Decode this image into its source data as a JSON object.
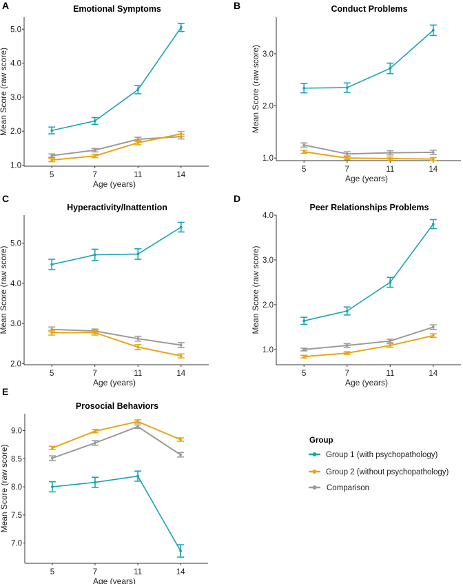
{
  "legend": {
    "title": "Group",
    "position": "bottom-right",
    "items": [
      {
        "label": "Group 1 (with psychopathology)",
        "color": "#1BA3B2"
      },
      {
        "label": "Group 2 (without psychopathology)",
        "color": "#E5A712"
      },
      {
        "label": "Comparison",
        "color": "#9A9A9A"
      }
    ]
  },
  "chart_data": [
    {
      "type": "line",
      "panel": "A",
      "title": "Emotional Symptoms",
      "xlabel": "Age (years)",
      "ylabel": "Mean Score (raw score)",
      "categories": [
        "5",
        "7",
        "11",
        "14"
      ],
      "yticks": [
        "1.0",
        "2.0",
        "3.0",
        "4.0",
        "5.0"
      ],
      "ylim": [
        0.97,
        5.35
      ],
      "series": [
        {
          "name": "Group 1 (with psychopathology)",
          "values": [
            2.02,
            2.3,
            3.22,
            5.05
          ],
          "err": [
            0.1,
            0.1,
            0.12,
            0.12
          ]
        },
        {
          "name": "Group 2 (without psychopathology)",
          "values": [
            1.15,
            1.27,
            1.66,
            1.92
          ],
          "err": [
            0.05,
            0.05,
            0.06,
            0.07
          ]
        },
        {
          "name": "Comparison",
          "values": [
            1.28,
            1.44,
            1.76,
            1.84
          ],
          "err": [
            0.05,
            0.05,
            0.06,
            0.07
          ]
        }
      ]
    },
    {
      "type": "line",
      "panel": "B",
      "title": "Conduct Problems",
      "xlabel": "Age (years)",
      "ylabel": "Mean Score (raw score)",
      "categories": [
        "5",
        "7",
        "11",
        "14"
      ],
      "yticks": [
        "1.0",
        "2.0",
        "3.0"
      ],
      "ylim": [
        0.95,
        3.7
      ],
      "series": [
        {
          "name": "Group 1 (with psychopathology)",
          "values": [
            2.34,
            2.35,
            2.72,
            3.45
          ],
          "err": [
            0.09,
            0.09,
            0.1,
            0.1
          ]
        },
        {
          "name": "Group 2 (without psychopathology)",
          "values": [
            1.12,
            1.0,
            0.99,
            0.98
          ],
          "err": [
            0.03,
            0.03,
            0.03,
            0.03
          ]
        },
        {
          "name": "Comparison",
          "values": [
            1.25,
            1.08,
            1.1,
            1.11
          ],
          "err": [
            0.04,
            0.04,
            0.04,
            0.04
          ]
        }
      ]
    },
    {
      "type": "line",
      "panel": "C",
      "title": "Hyperactivity/Inattention",
      "xlabel": "Age (years)",
      "ylabel": "Mean Score (raw score)",
      "categories": [
        "5",
        "7",
        "11",
        "14"
      ],
      "yticks": [
        "2.0",
        "3.0",
        "4.0",
        "5.0"
      ],
      "ylim": [
        1.97,
        5.7
      ],
      "series": [
        {
          "name": "Group 1 (with psychopathology)",
          "values": [
            4.47,
            4.71,
            4.73,
            5.4
          ],
          "err": [
            0.13,
            0.14,
            0.13,
            0.12
          ]
        },
        {
          "name": "Group 2 (without psychopathology)",
          "values": [
            2.77,
            2.77,
            2.41,
            2.19
          ],
          "err": [
            0.06,
            0.06,
            0.06,
            0.05
          ]
        },
        {
          "name": "Comparison",
          "values": [
            2.85,
            2.81,
            2.62,
            2.46
          ],
          "err": [
            0.06,
            0.05,
            0.06,
            0.06
          ]
        }
      ]
    },
    {
      "type": "line",
      "panel": "D",
      "title": "Peer Relationships Problems",
      "xlabel": "Age (years)",
      "ylabel": "Mean Score (raw score)",
      "categories": [
        "5",
        "7",
        "11",
        "14"
      ],
      "yticks": [
        "1.0",
        "2.0",
        "3.0",
        "4.0"
      ],
      "ylim": [
        0.66,
        4.0
      ],
      "series": [
        {
          "name": "Group 1 (with psychopathology)",
          "values": [
            1.64,
            1.86,
            2.5,
            3.8
          ],
          "err": [
            0.08,
            0.09,
            0.11,
            0.1
          ]
        },
        {
          "name": "Group 2 (without psychopathology)",
          "values": [
            0.84,
            0.92,
            1.09,
            1.31
          ],
          "err": [
            0.03,
            0.03,
            0.04,
            0.04
          ]
        },
        {
          "name": "Comparison",
          "values": [
            1.0,
            1.09,
            1.19,
            1.5
          ],
          "err": [
            0.03,
            0.04,
            0.04,
            0.05
          ]
        }
      ]
    },
    {
      "type": "line",
      "panel": "E",
      "title": "Prosocial Behaviors",
      "xlabel": "Age (years)",
      "ylabel": "Mean Score (raw score)",
      "categories": [
        "5",
        "7",
        "11",
        "14"
      ],
      "yticks": [
        "7.0",
        "7.5",
        "8.0",
        "8.5",
        "9.0"
      ],
      "ylim": [
        6.64,
        9.3
      ],
      "series": [
        {
          "name": "Group 1 (with psychopathology)",
          "values": [
            8.0,
            8.08,
            8.19,
            6.86
          ],
          "err": [
            0.09,
            0.09,
            0.09,
            0.11
          ]
        },
        {
          "name": "Group 2 (without psychopathology)",
          "values": [
            8.69,
            8.99,
            9.16,
            8.84
          ],
          "err": [
            0.03,
            0.03,
            0.03,
            0.03
          ]
        },
        {
          "name": "Comparison",
          "values": [
            8.51,
            8.78,
            9.07,
            8.57
          ],
          "err": [
            0.04,
            0.04,
            0.03,
            0.04
          ]
        }
      ]
    }
  ]
}
